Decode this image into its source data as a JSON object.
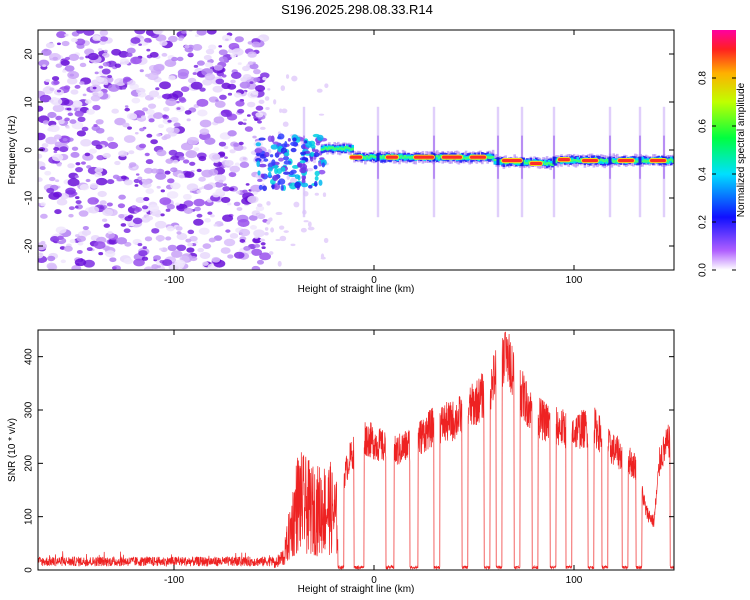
{
  "title": "S196.2025.298.08.33.R14",
  "chart_data": [
    {
      "type": "heatmap",
      "name": "spectrogram",
      "xlabel": "Height of straight line (km)",
      "ylabel": "Frequency (Hz)",
      "xlim": [
        -168,
        150
      ],
      "ylim": [
        -25,
        25
      ],
      "xticks": [
        -100,
        0,
        100
      ],
      "yticks": [
        -20,
        -10,
        0,
        10,
        20
      ],
      "noise_region_x": [
        -168,
        -58
      ],
      "signal_start_x": -58,
      "signal_end_x": 150,
      "signal_freq_hz": [
        0.5,
        -0.5,
        -1.5,
        -2.0,
        -2.5,
        -3.0
      ],
      "bright_segments": [
        {
          "x0": -12,
          "x1": -6,
          "f": -1.5
        },
        {
          "x0": 6,
          "x1": 12,
          "f": -1.5
        },
        {
          "x0": 20,
          "x1": 30,
          "f": -1.5
        },
        {
          "x0": 34,
          "x1": 44,
          "f": -1.5
        },
        {
          "x0": 48,
          "x1": 56,
          "f": -1.5
        },
        {
          "x0": 64,
          "x1": 74,
          "f": -2.2
        },
        {
          "x0": 78,
          "x1": 84,
          "f": -2.8
        },
        {
          "x0": 92,
          "x1": 98,
          "f": -2.0
        },
        {
          "x0": 104,
          "x1": 112,
          "f": -2.2
        },
        {
          "x0": 122,
          "x1": 130,
          "f": -2.2
        },
        {
          "x0": 138,
          "x1": 146,
          "f": -2.2
        }
      ],
      "vertical_spikes_x": [
        -35,
        2,
        30,
        62,
        74,
        90,
        118,
        133,
        145
      ],
      "colorbar": {
        "label": "Normalized spectral amplitude",
        "range": [
          0,
          1
        ],
        "ticks": [
          0.0,
          0.2,
          0.4,
          0.6,
          0.8
        ],
        "tick_labels": [
          "0.0",
          "0.2",
          "0.4",
          "0.6",
          "0.8"
        ]
      }
    },
    {
      "type": "line",
      "name": "snr",
      "xlabel": "Height of straight line (km)",
      "ylabel": "SNR (10 * v/v)",
      "xlim": [
        -168,
        150
      ],
      "ylim": [
        0,
        450
      ],
      "xticks": [
        -100,
        0,
        100
      ],
      "yticks": [
        0,
        100,
        200,
        300,
        400
      ],
      "color": "#ee2222",
      "noise_level": 15,
      "envelope": [
        {
          "x": -168,
          "y": 15
        },
        {
          "x": -50,
          "y": 15
        },
        {
          "x": -45,
          "y": 40
        },
        {
          "x": -38,
          "y": 200
        },
        {
          "x": -30,
          "y": 170
        },
        {
          "x": -22,
          "y": 180
        },
        {
          "x": -18,
          "y": 140
        },
        {
          "x": -12,
          "y": 210
        },
        {
          "x": -5,
          "y": 250
        },
        {
          "x": 0,
          "y": 240
        },
        {
          "x": 10,
          "y": 220
        },
        {
          "x": 20,
          "y": 240
        },
        {
          "x": 30,
          "y": 270
        },
        {
          "x": 40,
          "y": 280
        },
        {
          "x": 50,
          "y": 310
        },
        {
          "x": 58,
          "y": 340
        },
        {
          "x": 62,
          "y": 380
        },
        {
          "x": 65,
          "y": 400
        },
        {
          "x": 68,
          "y": 390
        },
        {
          "x": 74,
          "y": 330
        },
        {
          "x": 80,
          "y": 290
        },
        {
          "x": 90,
          "y": 270
        },
        {
          "x": 100,
          "y": 260
        },
        {
          "x": 110,
          "y": 270
        },
        {
          "x": 118,
          "y": 230
        },
        {
          "x": 126,
          "y": 210
        },
        {
          "x": 132,
          "y": 190
        },
        {
          "x": 136,
          "y": 110
        },
        {
          "x": 140,
          "y": 90
        },
        {
          "x": 143,
          "y": 210
        },
        {
          "x": 150,
          "y": 260
        }
      ],
      "dropouts_x": [
        [
          -18,
          -15
        ],
        [
          -10,
          -5
        ],
        [
          6,
          10
        ],
        [
          18,
          22
        ],
        [
          30,
          33
        ],
        [
          44,
          47
        ],
        [
          55,
          58
        ],
        [
          61,
          64
        ],
        [
          70,
          73
        ],
        [
          79,
          82
        ],
        [
          88,
          91
        ],
        [
          96,
          99
        ],
        [
          107,
          110
        ],
        [
          114,
          117
        ],
        [
          124,
          127
        ],
        [
          131,
          134
        ],
        [
          148,
          150
        ]
      ],
      "peak_value": 445
    }
  ]
}
